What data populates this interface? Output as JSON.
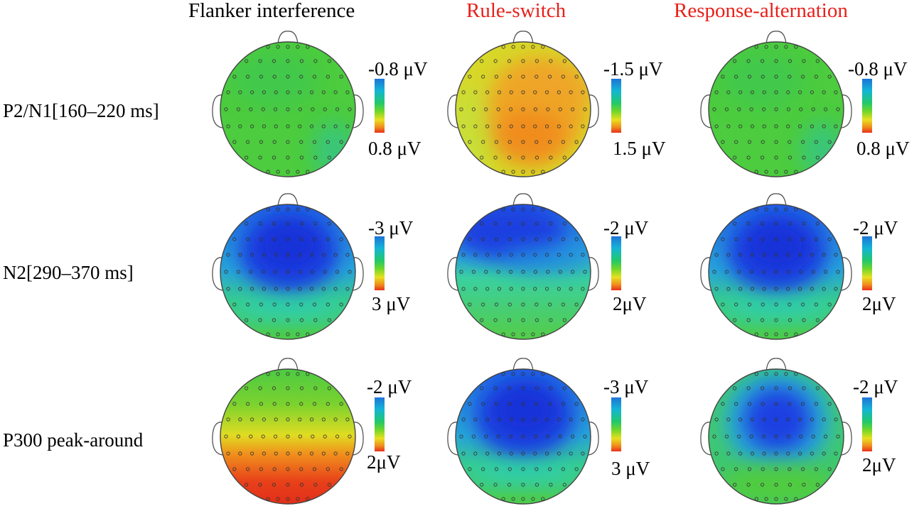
{
  "columns": [
    {
      "title": "Flanker interference",
      "color": "#000000"
    },
    {
      "title": "Rule-switch",
      "color": "#e8201a"
    },
    {
      "title": "Response-alternation",
      "color": "#e8201a"
    }
  ],
  "rows": [
    {
      "label": "P2/N1[160–220 ms]",
      "maps": [
        {
          "scale_top": "-0.8 μV",
          "scale_bottom": "0.8 μV",
          "pattern": "uniform-green"
        },
        {
          "scale_top": "-1.5 μV",
          "scale_bottom": "1.5 μV",
          "pattern": "yellow-orange-center-right"
        },
        {
          "scale_top": "-0.8 μV",
          "scale_bottom": "0.8 μV",
          "pattern": "uniform-green"
        }
      ]
    },
    {
      "label": "N2[290–370 ms]",
      "maps": [
        {
          "scale_top": "-3 μV",
          "scale_bottom": "3 μV",
          "pattern": "blue-frontocentral"
        },
        {
          "scale_top": "-2 μV",
          "scale_bottom": "2μV",
          "pattern": "blue-frontal"
        },
        {
          "scale_top": "-2 μV",
          "scale_bottom": "2μV",
          "pattern": "blue-frontocentral"
        }
      ]
    },
    {
      "label": "P300 peak-around",
      "maps": [
        {
          "scale_top": "-2 μV",
          "scale_bottom": "2μV",
          "pattern": "red-posterior"
        },
        {
          "scale_top": "-3 μV",
          "scale_bottom": "3 μV",
          "pattern": "blue-frontocentral"
        },
        {
          "scale_top": "-2 μV",
          "scale_bottom": "2μV",
          "pattern": "blue-central"
        }
      ]
    }
  ],
  "colormap": {
    "negative": "#1e40e0",
    "neutral": "#22c86a",
    "positive": "#e8301a"
  }
}
